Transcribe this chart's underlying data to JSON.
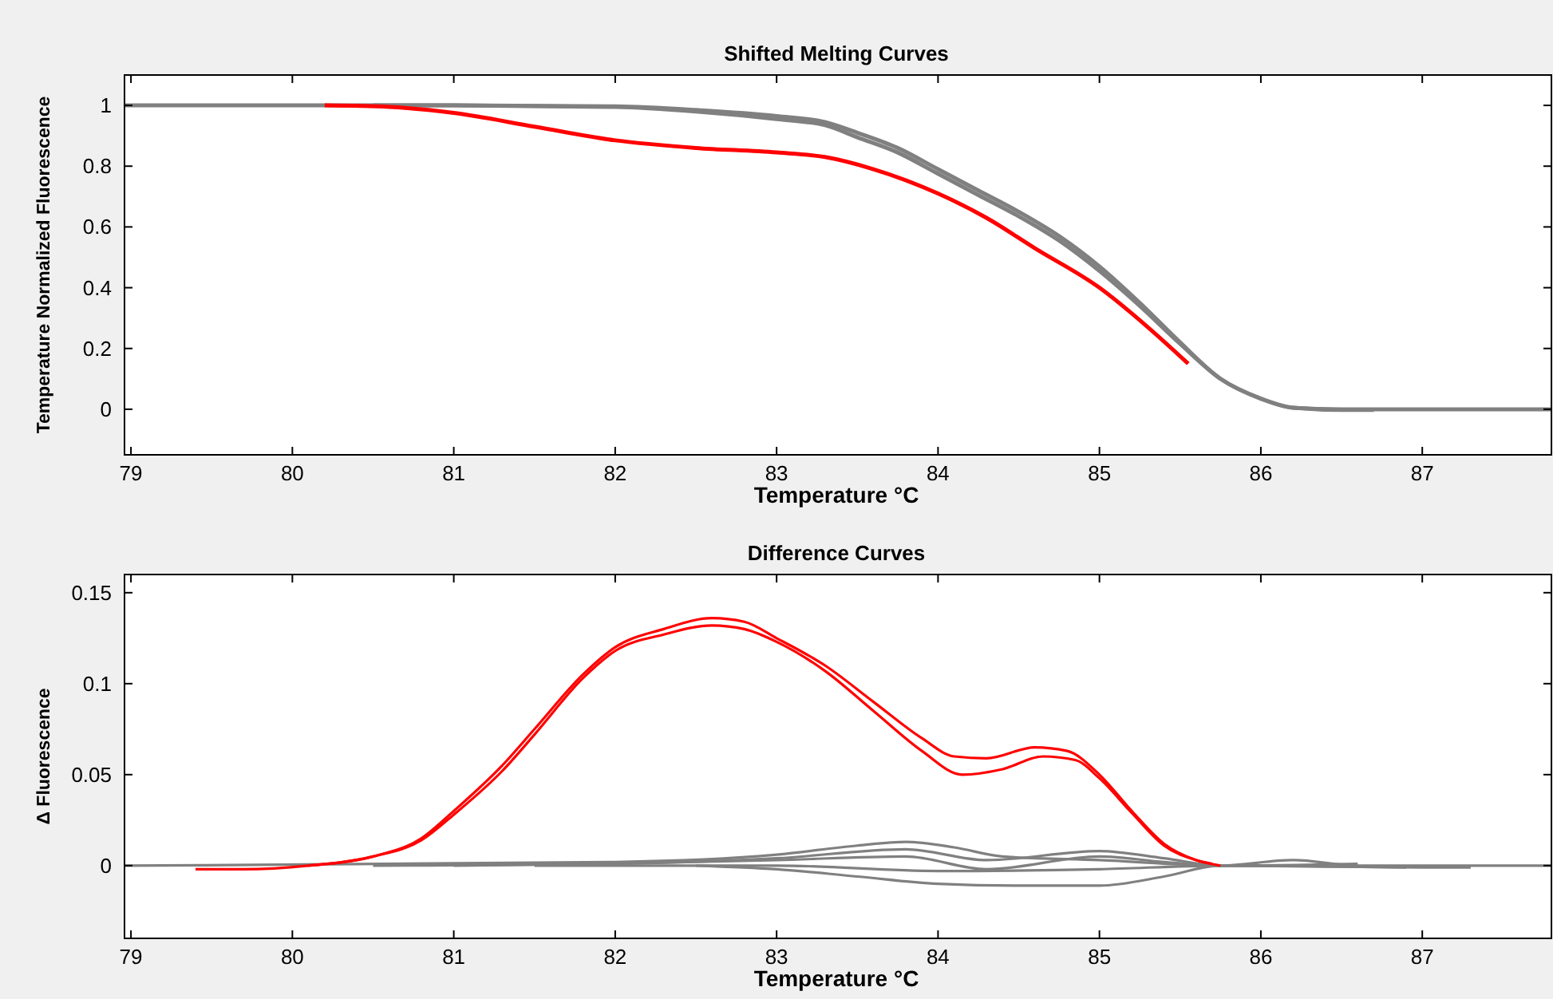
{
  "chart_data": [
    {
      "type": "line",
      "title": "Shifted Melting Curves",
      "xlabel": "Temperature °C",
      "ylabel": "Temperature Normalized Fluorescence",
      "xlim": [
        78.96,
        87.8
      ],
      "xticks": [
        79,
        80,
        81,
        82,
        83,
        84,
        85,
        86,
        87
      ],
      "ylim": [
        -0.15,
        1.1
      ],
      "yticks": [
        0,
        0.2,
        0.4,
        0.6,
        0.8,
        1
      ],
      "line_style": "solid",
      "series": [
        {
          "color": "#808080",
          "x": [
            78.96,
            80,
            81,
            82,
            82.5,
            83,
            83.3,
            83.5,
            83.75,
            84,
            84.25,
            84.5,
            84.75,
            85,
            85.25,
            85.5,
            85.75,
            86,
            86.2,
            86.5,
            87,
            87.8
          ],
          "values": [
            1,
            1,
            1,
            0.997,
            0.985,
            0.965,
            0.945,
            0.91,
            0.86,
            0.79,
            0.72,
            0.65,
            0.57,
            0.47,
            0.35,
            0.22,
            0.1,
            0.035,
            0.005,
            0,
            0,
            0
          ]
        },
        {
          "color": "#808080",
          "x": [
            80.5,
            81,
            82,
            82.5,
            83,
            83.3,
            83.5,
            83.75,
            84,
            84.25,
            84.5,
            84.75,
            85,
            85.25,
            85.5,
            85.75,
            86,
            86.2,
            86.5,
            86.7
          ],
          "values": [
            1,
            1,
            0.995,
            0.98,
            0.955,
            0.935,
            0.895,
            0.845,
            0.775,
            0.705,
            0.635,
            0.555,
            0.455,
            0.34,
            0.215,
            0.1,
            0.035,
            0.005,
            -0.002,
            -0.002
          ]
        },
        {
          "color": "#ff0000",
          "x": [
            80.2,
            80.6,
            81,
            81.5,
            82,
            82.5,
            83,
            83.3,
            83.6,
            84,
            84.3,
            84.6,
            85,
            85.3,
            85.55
          ],
          "values": [
            1,
            0.995,
            0.975,
            0.93,
            0.885,
            0.86,
            0.845,
            0.83,
            0.79,
            0.71,
            0.63,
            0.53,
            0.4,
            0.27,
            0.15
          ]
        }
      ]
    },
    {
      "type": "line",
      "title": "Difference Curves",
      "xlabel": "Temperature °C",
      "ylabel": "Δ Fluorescence",
      "xlim": [
        78.96,
        87.8
      ],
      "xticks": [
        79,
        80,
        81,
        82,
        83,
        84,
        85,
        86,
        87
      ],
      "ylim": [
        -0.04,
        0.16
      ],
      "yticks": [
        0,
        0.05,
        0.1,
        0.15
      ],
      "line_style": "solid",
      "series": [
        {
          "color": "#808080",
          "x": [
            78.96,
            82,
            83,
            83.5,
            83.8,
            84.1,
            84.4,
            85,
            85.75,
            86.2,
            86.6,
            87.8
          ],
          "values": [
            0,
            0.002,
            0.006,
            0.011,
            0.013,
            0.01,
            0.005,
            0.003,
            0,
            0.003,
            0,
            0
          ]
        },
        {
          "color": "#808080",
          "x": [
            80.5,
            82,
            83,
            83.8,
            84.3,
            85,
            85.4,
            85.75,
            86.4
          ],
          "values": [
            0,
            0.001,
            0.004,
            0.009,
            0.003,
            0.008,
            0.004,
            0,
            0
          ]
        },
        {
          "color": "#808080",
          "x": [
            81,
            82,
            83,
            83.8,
            84.3,
            85,
            85.4,
            85.75,
            86.6
          ],
          "values": [
            0,
            0.001,
            0.003,
            0.005,
            -0.002,
            0.005,
            0.002,
            0,
            0.001
          ]
        },
        {
          "color": "#808080",
          "x": [
            81.5,
            83,
            84,
            85,
            85.75,
            86.9
          ],
          "values": [
            0,
            0,
            -0.003,
            -0.002,
            0,
            -0.001
          ]
        },
        {
          "color": "#808080",
          "x": [
            82.5,
            83,
            83.5,
            84,
            84.5,
            85,
            85.4,
            85.75,
            87,
            87.3
          ],
          "values": [
            0,
            -0.002,
            -0.006,
            -0.01,
            -0.011,
            -0.011,
            -0.006,
            0,
            -0.001,
            -0.001
          ]
        },
        {
          "color": "#ff0000",
          "x": [
            79.4,
            79.7,
            80.1,
            80.5,
            80.8,
            81,
            81.3,
            81.5,
            81.8,
            82,
            82.3,
            82.6,
            82.8,
            83,
            83.3,
            83.6,
            83.9,
            84.1,
            84.3,
            84.6,
            84.8,
            85,
            85.2,
            85.4,
            85.6,
            85.75
          ],
          "values": [
            -0.002,
            -0.002,
            0,
            0.005,
            0.015,
            0.03,
            0.055,
            0.075,
            0.105,
            0.12,
            0.13,
            0.136,
            0.134,
            0.125,
            0.11,
            0.09,
            0.07,
            0.06,
            0.059,
            0.065,
            0.063,
            0.05,
            0.03,
            0.012,
            0.003,
            0
          ]
        },
        {
          "color": "#ff0000",
          "x": [
            80.1,
            80.5,
            80.8,
            81,
            81.3,
            81.5,
            81.8,
            82,
            82.3,
            82.6,
            82.8,
            83,
            83.3,
            83.6,
            83.9,
            84.15,
            84.4,
            84.65,
            84.85,
            85,
            85.2,
            85.4,
            85.6,
            85.7
          ],
          "values": [
            0,
            0.005,
            0.014,
            0.028,
            0.052,
            0.072,
            0.103,
            0.118,
            0.127,
            0.132,
            0.13,
            0.123,
            0.107,
            0.085,
            0.063,
            0.05,
            0.053,
            0.06,
            0.058,
            0.048,
            0.029,
            0.011,
            0.003,
            0.001
          ]
        }
      ]
    }
  ]
}
